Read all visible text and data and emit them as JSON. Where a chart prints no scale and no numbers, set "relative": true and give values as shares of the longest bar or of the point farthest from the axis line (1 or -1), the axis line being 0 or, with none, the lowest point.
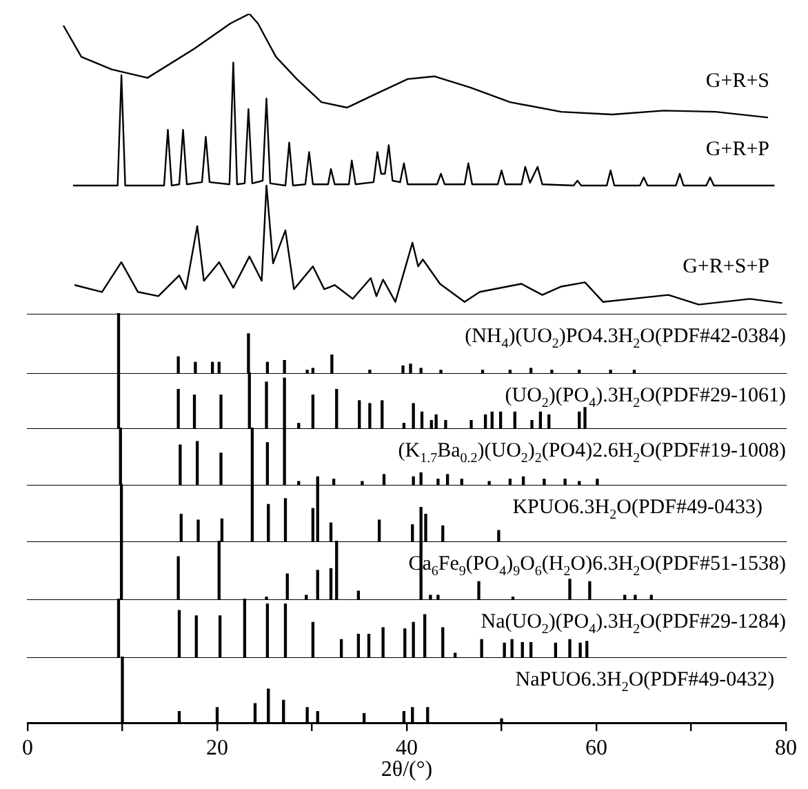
{
  "chart_data": [
    {
      "type": "line",
      "relative": true,
      "xlim": [
        0,
        80
      ],
      "tick_labels": false,
      "series": [
        {
          "name": "G+R+S",
          "color": "#000000",
          "x": [
            3.78,
            5.67,
            8.87,
            12.65,
            17.6,
            21.4,
            23.4,
            24.3,
            26.2,
            28.4,
            31.0,
            33.7,
            36.9,
            40.1,
            42.9,
            46.7,
            50.9,
            56.3,
            61.7,
            67.1,
            72.6,
            78.1
          ],
          "values": [
            0.961,
            0.857,
            0.815,
            0.787,
            0.884,
            0.968,
            1.0,
            0.968,
            0.857,
            0.783,
            0.706,
            0.688,
            0.736,
            0.783,
            0.792,
            0.755,
            0.706,
            0.674,
            0.665,
            0.678,
            0.674,
            0.655
          ]
        },
        {
          "name": "G+R+P",
          "color": "#000000",
          "x": [
            4.8,
            9.5,
            9.9,
            10.3,
            14.4,
            14.8,
            15.2,
            16.0,
            16.4,
            16.8,
            18.4,
            18.8,
            19.2,
            21.3,
            21.7,
            22.1,
            22.9,
            23.3,
            23.7,
            24.8,
            25.2,
            25.6,
            27.2,
            27.6,
            28.0,
            29.3,
            29.7,
            30.1,
            31.7,
            32.0,
            32.4,
            33.9,
            34.2,
            34.6,
            36.5,
            36.9,
            37.3,
            37.7,
            38.1,
            38.5,
            39.3,
            39.7,
            40.1,
            43.2,
            43.6,
            44.0,
            46.1,
            46.5,
            46.9,
            49.6,
            50.0,
            50.4,
            52.1,
            52.5,
            53.0,
            53.8,
            54.3,
            57.6,
            58.0,
            58.4,
            61.1,
            61.5,
            61.9,
            64.6,
            65.0,
            65.4,
            68.4,
            68.8,
            69.2,
            71.6,
            72.0,
            72.4,
            78.8
          ],
          "values": [
            0.429,
            0.429,
            0.796,
            0.429,
            0.429,
            0.614,
            0.429,
            0.433,
            0.614,
            0.433,
            0.44,
            0.591,
            0.44,
            0.433,
            0.838,
            0.433,
            0.436,
            0.683,
            0.436,
            0.445,
            0.718,
            0.436,
            0.429,
            0.572,
            0.429,
            0.433,
            0.54,
            0.433,
            0.433,
            0.484,
            0.433,
            0.433,
            0.512,
            0.433,
            0.44,
            0.54,
            0.468,
            0.468,
            0.563,
            0.445,
            0.44,
            0.503,
            0.433,
            0.433,
            0.468,
            0.433,
            0.433,
            0.503,
            0.433,
            0.433,
            0.479,
            0.433,
            0.433,
            0.491,
            0.438,
            0.491,
            0.433,
            0.429,
            0.445,
            0.429,
            0.429,
            0.479,
            0.429,
            0.429,
            0.456,
            0.429,
            0.429,
            0.468,
            0.429,
            0.429,
            0.456,
            0.429,
            0.429
          ]
        },
        {
          "name": "G+R+S+P",
          "color": "#000000",
          "x": [
            4.95,
            7.85,
            9.89,
            11.64,
            13.8,
            16.0,
            16.7,
            17.9,
            18.6,
            20.2,
            21.7,
            23.4,
            24.7,
            25.2,
            25.9,
            27.2,
            28.1,
            30.1,
            31.3,
            32.4,
            34.3,
            36.2,
            36.8,
            37.5,
            38.8,
            40.6,
            41.2,
            41.7,
            43.5,
            46.1,
            47.7,
            52.1,
            54.3,
            56.3,
            58.8,
            60.7,
            67.6,
            70.8,
            76.2,
            79.6
          ],
          "values": [
            0.098,
            0.075,
            0.174,
            0.075,
            0.061,
            0.13,
            0.084,
            0.294,
            0.112,
            0.174,
            0.089,
            0.193,
            0.112,
            0.429,
            0.17,
            0.28,
            0.084,
            0.16,
            0.084,
            0.098,
            0.052,
            0.121,
            0.061,
            0.116,
            0.042,
            0.239,
            0.16,
            0.183,
            0.102,
            0.042,
            0.075,
            0.102,
            0.065,
            0.093,
            0.107,
            0.042,
            0.065,
            0.033,
            0.052,
            0.038
          ]
        }
      ]
    },
    {
      "type": "bar",
      "relative": true,
      "xlim": [
        0,
        80
      ],
      "tick_labels": false,
      "series": [
        {
          "name": "(NH$_{4}$)(UO$_{2}$)PO4.3H$_{2}$O(PDF#42-0384)",
          "color": "#000000",
          "x": [
            9.6,
            15.9,
            17.7,
            19.5,
            20.2,
            23.3,
            25.3,
            27.1,
            29.5,
            30.1,
            32.1,
            36.1,
            39.6,
            40.4,
            41.5,
            43.6,
            48.0,
            50.9,
            53.1,
            55.3,
            58.2,
            61.5,
            64.0
          ],
          "values": [
            1,
            0.28,
            0.19,
            0.19,
            0.19,
            0.66,
            0.19,
            0.22,
            0.06,
            0.09,
            0.31,
            0.06,
            0.13,
            0.16,
            0.09,
            0.06,
            0.06,
            0.06,
            0.09,
            0.06,
            0.06,
            0.06,
            0.06
          ]
        }
      ]
    },
    {
      "type": "bar",
      "relative": true,
      "xlim": [
        0,
        80
      ],
      "tick_labels": false,
      "series": [
        {
          "name": "(UO$_{2}$)(PO$_{4}$).3H$_{2}$O(PDF#29-1061)",
          "color": "#000000",
          "x": [
            9.6,
            15.9,
            17.6,
            20.4,
            23.4,
            25.2,
            27.1,
            28.6,
            30.1,
            32.6,
            35.0,
            36.1,
            37.4,
            39.7,
            40.7,
            41.6,
            42.6,
            43.1,
            44.1,
            46.8,
            48.3,
            49.0,
            49.9,
            51.4,
            53.2,
            54.1,
            55.0,
            58.2,
            58.8
          ],
          "values": [
            1,
            0.7,
            0.6,
            0.6,
            1,
            0.83,
            0.9,
            0.1,
            0.6,
            0.7,
            0.5,
            0.45,
            0.5,
            0.1,
            0.45,
            0.3,
            0.15,
            0.25,
            0.15,
            0.15,
            0.25,
            0.3,
            0.3,
            0.3,
            0.15,
            0.3,
            0.25,
            0.3,
            0.38
          ]
        }
      ]
    },
    {
      "type": "bar",
      "relative": true,
      "xlim": [
        0,
        80
      ],
      "tick_labels": false,
      "series": [
        {
          "name": "(K$_{1.7}$Ba$_{0.2}$)(UO$_{2}$)$_{2}$(PO4)2.6H$_{2}$O(PDF#19-1008)",
          "color": "#000000",
          "x": [
            9.8,
            16.1,
            17.9,
            20.4,
            23.7,
            25.3,
            27.1,
            28.6,
            30.6,
            32.3,
            35.3,
            37.6,
            40.7,
            41.5,
            43.3,
            44.3,
            45.8,
            48.7,
            50.9,
            52.3,
            54.5,
            56.7,
            58.2,
            60.1
          ],
          "values": [
            1,
            0.7,
            0.76,
            0.56,
            1,
            0.74,
            1,
            0.07,
            0.15,
            0.11,
            0.07,
            0.19,
            0.15,
            0.22,
            0.11,
            0.19,
            0.11,
            0.07,
            0.11,
            0.15,
            0.11,
            0.11,
            0.07,
            0.11
          ]
        }
      ]
    },
    {
      "type": "bar",
      "relative": true,
      "xlim": [
        0,
        80
      ],
      "tick_labels": false,
      "series": [
        {
          "name": "KPUO6.3H$_{2}$O(PDF#49-0433)",
          "color": "#000000",
          "x": [
            9.9,
            16.2,
            18.0,
            20.5,
            23.7,
            25.4,
            27.2,
            30.1,
            30.6,
            32.0,
            37.1,
            40.6,
            41.5,
            42.0,
            43.8,
            49.7
          ],
          "values": [
            1,
            0.48,
            0.38,
            0.4,
            0.98,
            0.65,
            0.75,
            0.58,
            0.98,
            0.33,
            0.38,
            0.3,
            0.6,
            0.48,
            0.28,
            0.2
          ]
        }
      ]
    },
    {
      "type": "bar",
      "relative": true,
      "xlim": [
        0,
        80
      ],
      "tick_labels": false,
      "series": [
        {
          "name": "Ca$_{6}$Fe$_{9}$(PO$_{4}$)$_{9}$O$_{6}$(H$_{2}$O)6.3H$_{2}$O(PDF#51-1538)",
          "color": "#000000",
          "x": [
            9.9,
            15.9,
            20.2,
            25.2,
            27.4,
            29.4,
            30.6,
            32.0,
            32.6,
            34.9,
            41.5,
            42.5,
            43.3,
            47.6,
            51.2,
            57.2,
            59.3,
            63.0,
            64.1,
            65.8
          ],
          "values": [
            1,
            0.73,
            1,
            0.05,
            0.44,
            0.08,
            0.5,
            0.53,
            1,
            0.15,
            1,
            0.08,
            0.08,
            0.31,
            0.05,
            0.35,
            0.31,
            0.08,
            0.08,
            0.08
          ]
        }
      ]
    },
    {
      "type": "bar",
      "relative": true,
      "xlim": [
        0,
        80
      ],
      "tick_labels": false,
      "series": [
        {
          "name": "Na(UO$_{2}$)(PO$_{4}$).3H$_{2}$O(PDF#29-1284)",
          "color": "#000000",
          "x": [
            9.6,
            16.0,
            17.8,
            20.3,
            22.9,
            25.3,
            27.2,
            30.1,
            33.1,
            34.9,
            36.0,
            37.5,
            39.8,
            40.7,
            41.9,
            43.8,
            45.1,
            47.9,
            50.3,
            51.1,
            52.2,
            53.1,
            55.7,
            57.2,
            58.3,
            59.0
          ],
          "values": [
            1,
            0.8,
            0.71,
            0.71,
            1,
            0.91,
            0.91,
            0.6,
            0.31,
            0.4,
            0.4,
            0.51,
            0.49,
            0.6,
            0.73,
            0.51,
            0.08,
            0.31,
            0.25,
            0.31,
            0.26,
            0.26,
            0.25,
            0.31,
            0.25,
            0.28
          ]
        }
      ]
    },
    {
      "type": "bar",
      "relative": true,
      "xlim": [
        0,
        80
      ],
      "xticks": [
        0,
        {
          "value": 10,
          "label": null
        },
        20,
        {
          "value": 30,
          "label": null
        },
        40,
        {
          "value": 50,
          "label": null
        },
        60,
        {
          "value": 70,
          "label": null
        },
        80
      ],
      "xlabel": "2θ/(°)",
      "series": [
        {
          "name": "NaPUO6.3H$_{2}$O(PDF#49-0432)",
          "color": "#000000",
          "x": [
            10.0,
            16.0,
            20.0,
            24.0,
            25.4,
            27.0,
            29.5,
            30.6,
            35.5,
            39.7,
            40.6,
            42.2,
            50.0
          ],
          "values": [
            1,
            0.17,
            0.23,
            0.29,
            0.51,
            0.34,
            0.23,
            0.17,
            0.14,
            0.17,
            0.23,
            0.23,
            0.06
          ]
        }
      ]
    }
  ]
}
